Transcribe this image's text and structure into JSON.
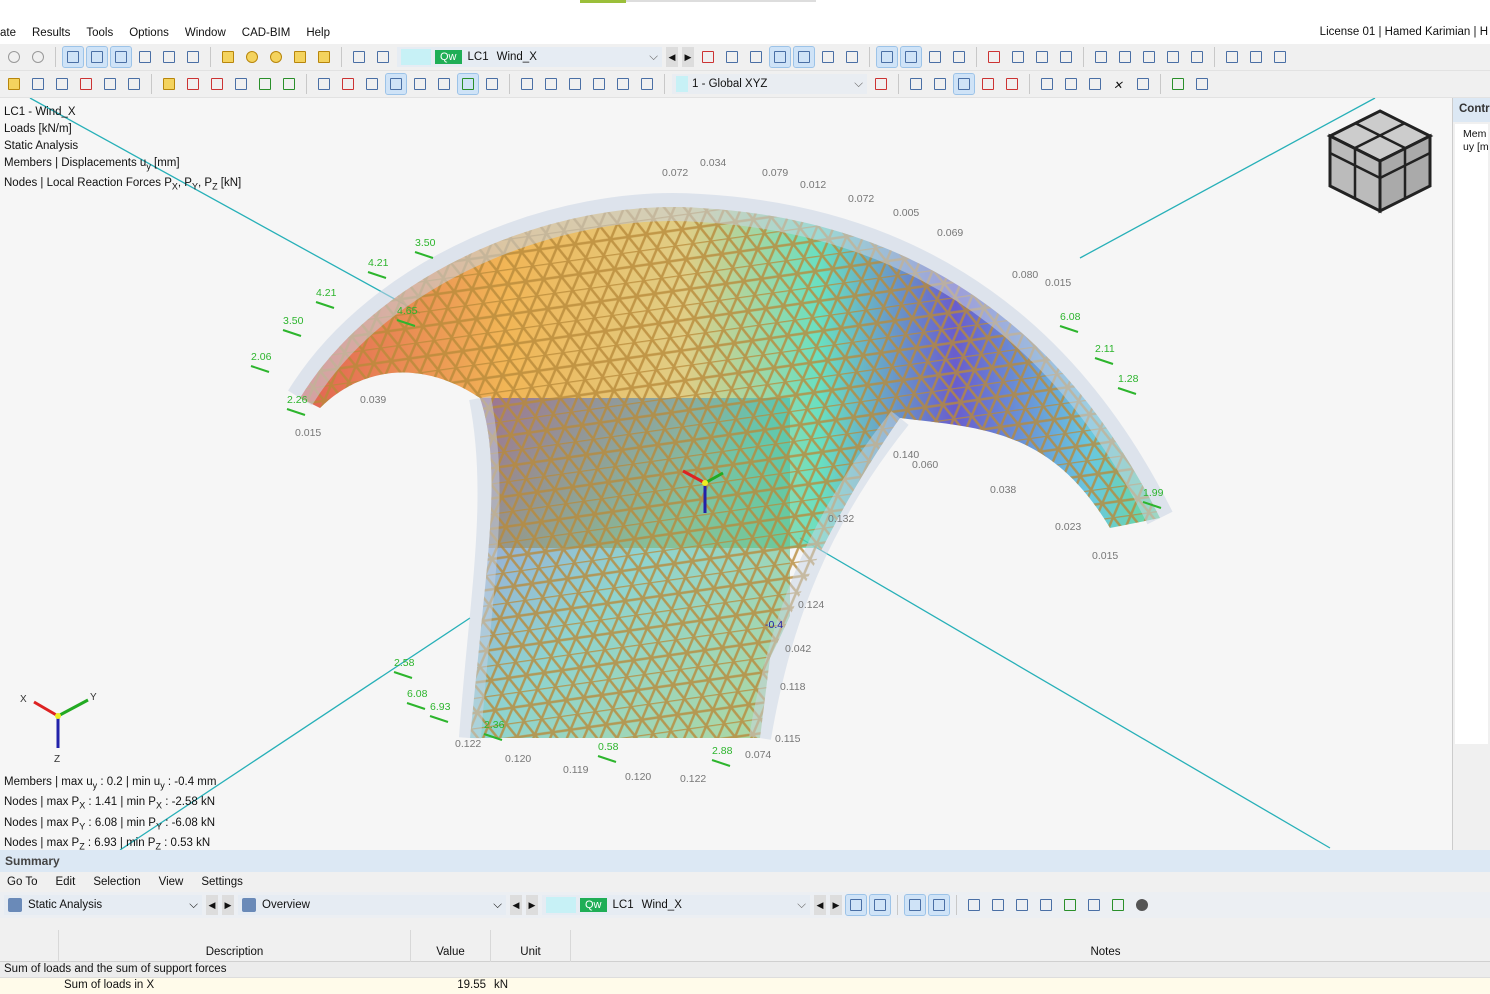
{
  "menu": {
    "items": [
      "ate",
      "Results",
      "Tools",
      "Options",
      "Window",
      "CAD-BIM",
      "Help"
    ],
    "license": "License 01 | Hamed Karimian | H"
  },
  "toolbar": {
    "load_case_tag": "Qw",
    "load_case": "LC1",
    "load_case_name": "Wind_X",
    "coord_system": "1 - Global XYZ"
  },
  "viewport": {
    "info_top": [
      "LC1 - Wind_X",
      "Loads [kN/m]",
      "Static Analysis"
    ],
    "info_members": "Members | Displacements u",
    "info_members_sub": "y",
    "info_members_unit": " [mm]",
    "info_nodes": "Nodes | Local Reaction Forces P",
    "info_nodes_subs": [
      "X",
      "Y",
      "Z"
    ],
    "info_nodes_unit": " [kN]",
    "summary_lines": [
      {
        "a": "Members | max u",
        "s1": "y",
        "b": " : 0.2 | min u",
        "s2": "y",
        "c": " : -0.4 mm"
      },
      {
        "a": "Nodes | max P",
        "s1": "X",
        "b": " : 1.41 | min P",
        "s2": "X",
        "c": " : -2.58 kN"
      },
      {
        "a": "Nodes | max P",
        "s1": "Y",
        "b": " : 6.08 | min P",
        "s2": "Y",
        "c": " : -6.08 kN"
      },
      {
        "a": "Nodes | max P",
        "s1": "Z",
        "b": " : 6.93 | min P",
        "s2": "Z",
        "c": " : 0.53 kN"
      }
    ],
    "axis_labels": {
      "x": "X",
      "y": "Y",
      "z": "Z"
    },
    "member_labels": [
      "0.072",
      "0.034",
      "0.079",
      "0.012",
      "0.072",
      "0.005",
      "0.069",
      "0.080",
      "0.015",
      "0.039",
      "0.015",
      "0.124",
      "0.118",
      "0.132",
      "0.060",
      "0.038",
      "0.023",
      "0.015",
      "0.122",
      "0.120",
      "0.119",
      "0.120",
      "0.122",
      "0.074",
      "0.115",
      "0.042",
      "0.140",
      "-0.4"
    ],
    "reaction_labels": [
      "4.21",
      "4.21",
      "3.50",
      "3.50",
      "2.06",
      "2.26",
      "2.58",
      "6.08",
      "6.93",
      "2.11",
      "1.28",
      "6.08",
      "4.65",
      "2.36",
      "0.58",
      "2.88",
      "1.99"
    ],
    "colors": {
      "max": "#d9241c",
      "mid": "#2fd35c",
      "min": "#2a1aa8",
      "reaction": "#2db52d",
      "axis_line": "#27b0b8"
    }
  },
  "right_panel": {
    "title": "Contr",
    "line1": "Mem",
    "line2": "uy [m"
  },
  "summary": {
    "title": "Summary",
    "menu": [
      "Go To",
      "Edit",
      "Selection",
      "View",
      "Settings"
    ],
    "analysis": "Static Analysis",
    "view": "Overview",
    "load_case_tag": "Qw",
    "load_case": "LC1",
    "load_case_name": "Wind_X",
    "columns": [
      "Description",
      "Value",
      "Unit",
      "Notes"
    ],
    "group": "Sum of loads and the sum of support forces",
    "rows": [
      {
        "description": "Sum of loads in X",
        "value": "19.55",
        "unit": "kN",
        "notes": ""
      }
    ]
  }
}
